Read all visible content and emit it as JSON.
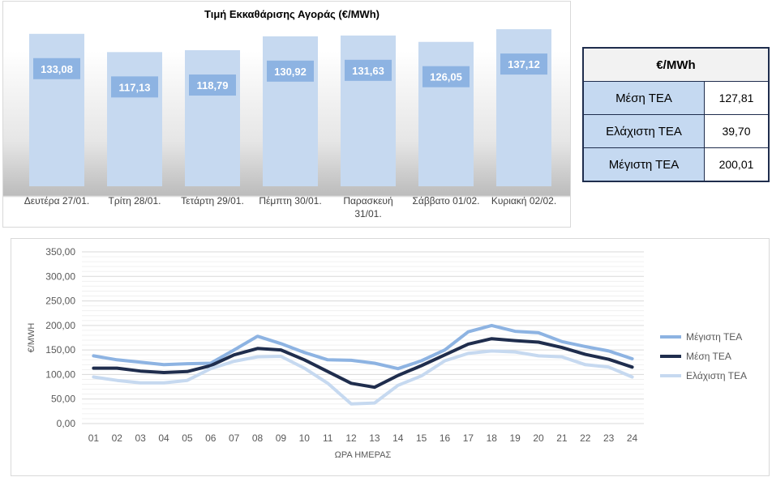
{
  "table": {
    "header": "€/MWh",
    "rows": [
      {
        "label": "Μέση ΤΕΑ",
        "value": "127,81"
      },
      {
        "label": "Ελάχιστη ΤΕΑ",
        "value": "39,70"
      },
      {
        "label": "Μέγιστη ΤΕΑ",
        "value": "200,01"
      }
    ]
  },
  "chart_data": [
    {
      "type": "bar",
      "title": "Τιμή Εκκαθάρισης Αγοράς (€/MWh)",
      "categories": [
        "Δευτέρα 27/01.",
        "Τρίτη 28/01.",
        "Τετάρτη 29/01.",
        "Πέμπτη 30/01.",
        "Παρασκευή 31/01.",
        "Σάββατο 01/02.",
        "Κυριακή 02/02."
      ],
      "values": [
        133.08,
        117.13,
        118.79,
        130.92,
        131.63,
        126.05,
        137.12
      ],
      "value_labels": [
        "133,08",
        "117,13",
        "118,79",
        "130,92",
        "131,63",
        "126,05",
        "137,12"
      ],
      "ylim": [
        0,
        140
      ],
      "grid": false,
      "colors": {
        "bar": "#c6d9f0",
        "label_box": "#8db3e2",
        "label_text": "#ffffff"
      }
    },
    {
      "type": "line",
      "xlabel": "ΩΡΑ ΗΜΕΡΑΣ",
      "ylabel": "€/MWH",
      "x": [
        "01",
        "02",
        "03",
        "04",
        "05",
        "06",
        "07",
        "08",
        "09",
        "10",
        "11",
        "12",
        "13",
        "14",
        "15",
        "16",
        "17",
        "18",
        "19",
        "20",
        "21",
        "22",
        "23",
        "24"
      ],
      "y_ticks": [
        "0,00",
        "50,00",
        "100,00",
        "150,00",
        "200,00",
        "250,00",
        "300,00",
        "350,00"
      ],
      "ylim": [
        0,
        350
      ],
      "grid": true,
      "legend_position": "right",
      "series": [
        {
          "name": "Μέγιστη ΤΕΑ",
          "color": "#8db3e2",
          "values": [
            138,
            130,
            125,
            120,
            122,
            123,
            150,
            178,
            163,
            145,
            130,
            129,
            123,
            112,
            128,
            150,
            187,
            200,
            188,
            185,
            167,
            157,
            148,
            132
          ]
        },
        {
          "name": "Μέση ΤΕΑ",
          "color": "#1f2d4d",
          "values": [
            113,
            113,
            107,
            104,
            106,
            118,
            140,
            153,
            150,
            130,
            106,
            82,
            74,
            98,
            118,
            140,
            162,
            173,
            169,
            166,
            155,
            141,
            131,
            115
          ]
        },
        {
          "name": "Ελάχιστη ΤΕΑ",
          "color": "#c6d9f0",
          "values": [
            95,
            88,
            83,
            83,
            88,
            112,
            127,
            136,
            137,
            113,
            82,
            40,
            42,
            78,
            97,
            128,
            143,
            148,
            146,
            138,
            136,
            120,
            115,
            95
          ]
        }
      ]
    }
  ]
}
